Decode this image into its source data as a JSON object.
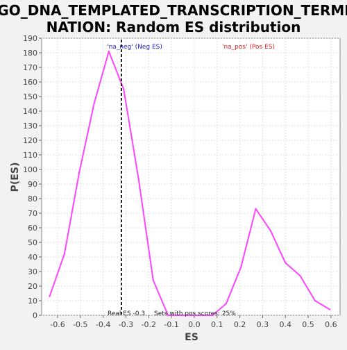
{
  "chart_data": {
    "type": "line",
    "title_lines": [
      "GO_DNA_TEMPLATED_TRANSCRIPTION_TERMI",
      "NATION: Random ES distribution"
    ],
    "xlabel": "ES",
    "ylabel": "P(ES)",
    "xlim": [
      -0.67,
      0.64
    ],
    "ylim": [
      0,
      190
    ],
    "xticks": [
      -0.6,
      -0.5,
      -0.4,
      -0.3,
      -0.2,
      -0.1,
      0.0,
      0.1,
      0.2,
      0.3,
      0.4,
      0.5,
      0.6
    ],
    "xtick_labels": [
      "-0.6",
      "-0.5",
      "-0.4",
      "-0.3",
      "-0.2",
      "-0.1",
      "0.0",
      "0.1",
      "0.2",
      "0.3",
      "0.4",
      "0.5",
      "0.6"
    ],
    "yticks": [
      0,
      10,
      20,
      30,
      40,
      50,
      60,
      70,
      80,
      90,
      100,
      110,
      120,
      130,
      140,
      150,
      160,
      170,
      180,
      190
    ],
    "grid": true,
    "series": [
      {
        "color": "#ff44ff",
        "points": [
          [
            -0.635,
            13
          ],
          [
            -0.57,
            42
          ],
          [
            -0.505,
            98
          ],
          [
            -0.44,
            145
          ],
          [
            -0.375,
            181
          ],
          [
            -0.31,
            155
          ],
          [
            -0.245,
            94
          ],
          [
            -0.18,
            24
          ],
          [
            -0.115,
            0
          ],
          [
            -0.05,
            0
          ],
          [
            0.015,
            0
          ],
          [
            0.08,
            0
          ],
          [
            0.14,
            8
          ],
          [
            0.205,
            33
          ],
          [
            0.27,
            73
          ],
          [
            0.335,
            58
          ],
          [
            0.4,
            36
          ],
          [
            0.465,
            27
          ],
          [
            0.53,
            10
          ],
          [
            0.595,
            4
          ]
        ]
      }
    ],
    "real_es_line": {
      "x": -0.32,
      "style": "dashed",
      "color": "#000000"
    },
    "annotations": {
      "neg_label": "'na_neg' (Neg ES)",
      "neg_color": "#2222cc",
      "pos_label": "'na_pos' (Pos ES)",
      "pos_color": "#dd2222",
      "real_es": "Real ES -0.3",
      "sets_with_pos": "Sets with pos scores: 25%"
    }
  }
}
